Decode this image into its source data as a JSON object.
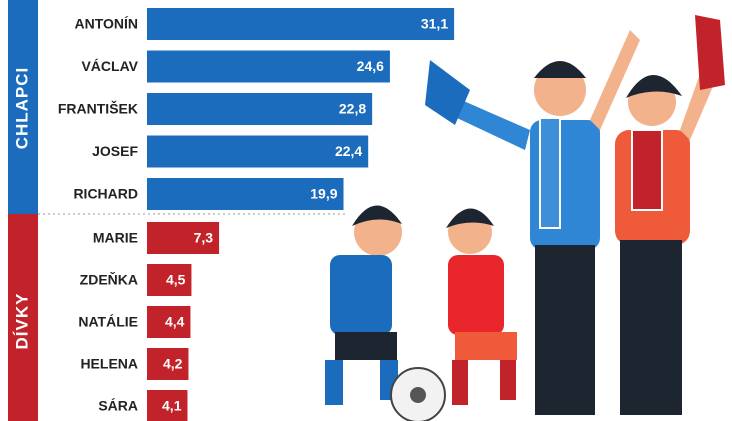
{
  "chart_data": {
    "type": "bar",
    "orientation": "horizontal",
    "categories": [
      "ANTONÍN",
      "VÁCLAV",
      "FRANTIŠEK",
      "JOSEF",
      "RICHARD",
      "MARIE",
      "ZDEŇKA",
      "NATÁLIE",
      "HELENA",
      "SÁRA"
    ],
    "series": [
      {
        "name": "CHLAPCI",
        "color": "#1c6cbd",
        "values": [
          31.1,
          24.6,
          22.8,
          22.4,
          19.9,
          null,
          null,
          null,
          null,
          null
        ],
        "value_labels": [
          "31,1",
          "24,6",
          "22,8",
          "22,4",
          "19,9",
          null,
          null,
          null,
          null,
          null
        ]
      },
      {
        "name": "DÍVKY",
        "color": "#c2232b",
        "values": [
          null,
          null,
          null,
          null,
          null,
          7.3,
          4.5,
          4.4,
          4.2,
          4.1
        ],
        "value_labels": [
          null,
          null,
          null,
          null,
          null,
          "7,3",
          "4,5",
          "4,4",
          "4,2",
          "4,1"
        ]
      }
    ],
    "xlim": [
      0,
      32
    ]
  }
}
